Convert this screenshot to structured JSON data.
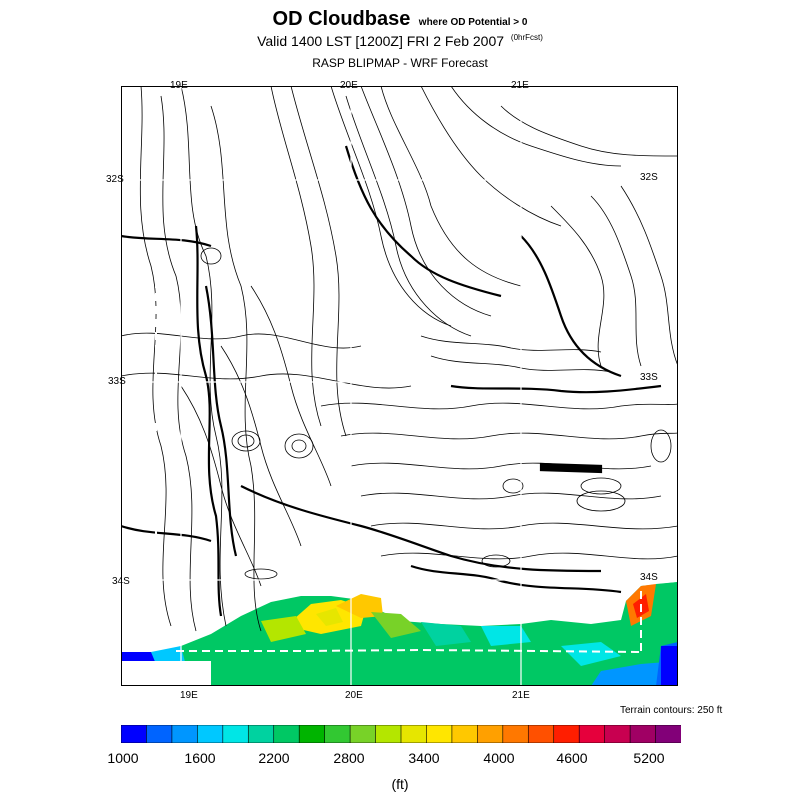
{
  "title": {
    "main": "OD Cloudbase",
    "qualifier": "where OD Potential > 0",
    "valid": "Valid 1400 LST [1200Z] FRI 2 Feb 2007",
    "forecast_tag": "(0hrFcst)",
    "source": "RASP BLIPMAP - WRF Forecast"
  },
  "map": {
    "lon_labels_top": [
      "19E",
      "20E",
      "21E"
    ],
    "lon_labels_bottom": [
      "19E",
      "20E",
      "21E"
    ],
    "lat_labels_left": [
      "32S",
      "33S",
      "34S"
    ],
    "lat_labels_right": [
      "32S",
      "33S",
      "34S"
    ],
    "terrain_note": "Terrain contours: 250 ft"
  },
  "colorbar": {
    "ticks": [
      "1000",
      "1600",
      "2200",
      "2800",
      "3400",
      "4000",
      "4600",
      "5200"
    ],
    "units": "(ft)",
    "colors": [
      "#0000ff",
      "#0064ff",
      "#0096ff",
      "#00c8ff",
      "#00e6e6",
      "#00d2a0",
      "#00c864",
      "#00b400",
      "#32c832",
      "#78d228",
      "#b4e600",
      "#e6e600",
      "#ffe600",
      "#ffc800",
      "#ffa000",
      "#ff7800",
      "#ff5000",
      "#ff1e00",
      "#e6003c",
      "#c80050",
      "#a00064",
      "#820078"
    ]
  }
}
